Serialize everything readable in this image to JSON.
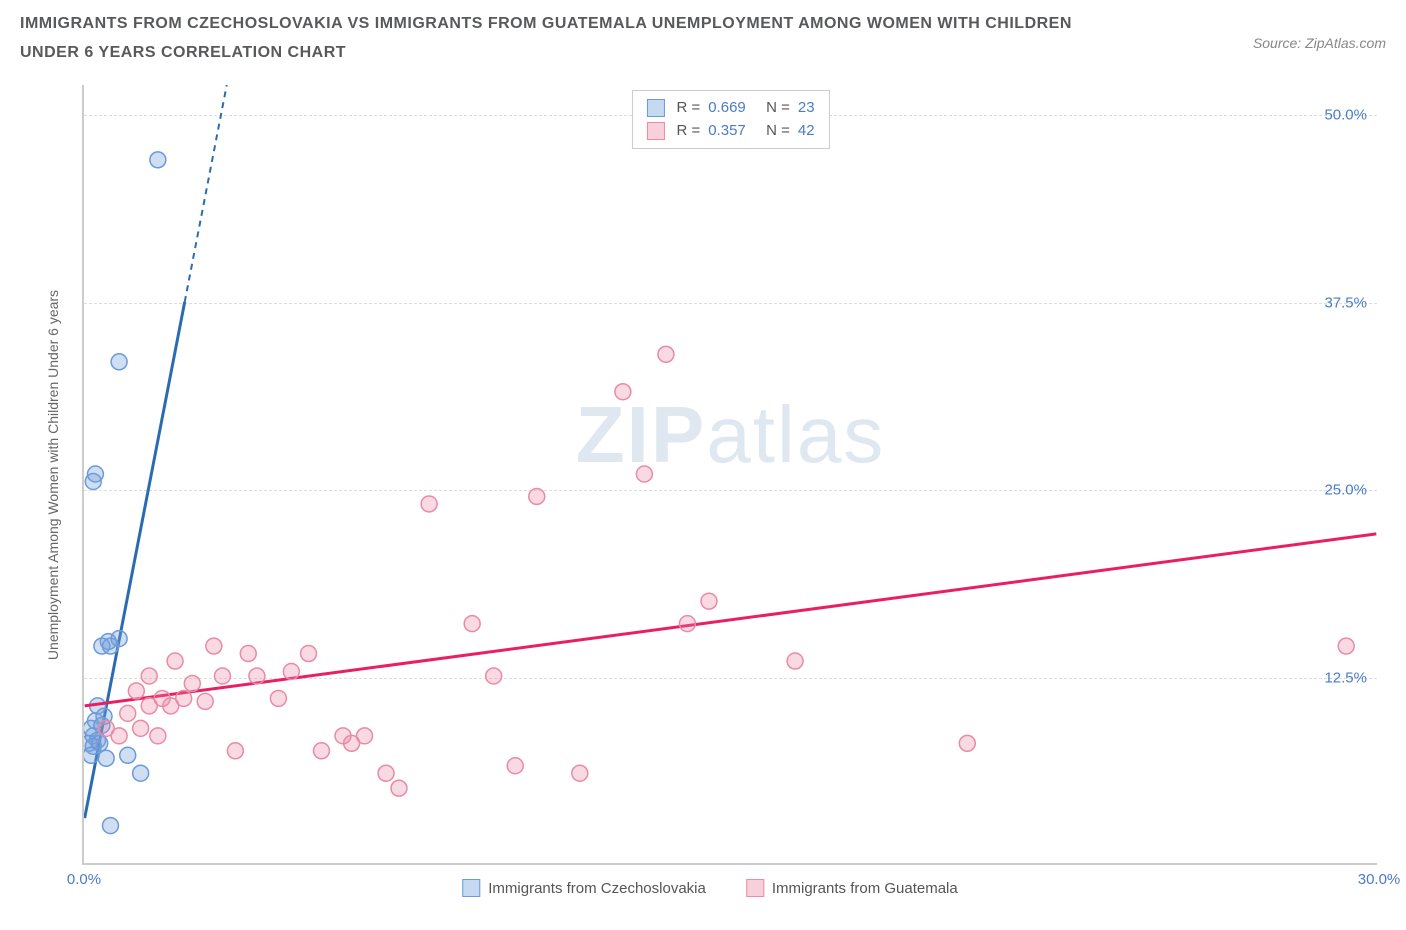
{
  "title": "IMMIGRANTS FROM CZECHOSLOVAKIA VS IMMIGRANTS FROM GUATEMALA UNEMPLOYMENT AMONG WOMEN WITH CHILDREN UNDER 6 YEARS CORRELATION CHART",
  "source": "Source: ZipAtlas.com",
  "y_axis_label": "Unemployment Among Women with Children Under 6 years",
  "watermark_bold": "ZIP",
  "watermark_light": "atlas",
  "chart": {
    "type": "scatter",
    "xlim": [
      0,
      30
    ],
    "ylim": [
      0,
      52
    ],
    "x_ticks": [
      {
        "v": 0,
        "l": "0.0%"
      },
      {
        "v": 30,
        "l": "30.0%"
      }
    ],
    "y_ticks": [
      {
        "v": 12.5,
        "l": "12.5%"
      },
      {
        "v": 25,
        "l": "25.0%"
      },
      {
        "v": 37.5,
        "l": "37.5%"
      },
      {
        "v": 50,
        "l": "50.0%"
      }
    ],
    "grid_color": "#dddddd",
    "background_color": "#ffffff",
    "label_color": "#4a7bc8",
    "series": [
      {
        "name": "Immigrants from Czechoslovakia",
        "key": "czech",
        "color_fill": "rgba(120,160,220,0.35)",
        "color_stroke": "#6a9bd8",
        "line_color": "#2b6cb0",
        "swatch_fill": "#c5d9f1",
        "swatch_border": "#6a9bd8",
        "R": "0.669",
        "N": "23",
        "trend": {
          "x1": 0,
          "y1": 3.0,
          "x2": 3.3,
          "y2": 52,
          "dash_from_y": 37.5
        },
        "points": [
          [
            0.1,
            8.0
          ],
          [
            0.2,
            8.5
          ],
          [
            0.15,
            9.0
          ],
          [
            0.3,
            8.2
          ],
          [
            0.25,
            9.5
          ],
          [
            0.2,
            7.8
          ],
          [
            0.35,
            8.0
          ],
          [
            0.15,
            7.2
          ],
          [
            0.4,
            9.2
          ],
          [
            0.3,
            10.5
          ],
          [
            0.5,
            7.0
          ],
          [
            0.45,
            9.8
          ],
          [
            0.4,
            14.5
          ],
          [
            0.55,
            14.8
          ],
          [
            0.6,
            14.5
          ],
          [
            0.8,
            15.0
          ],
          [
            1.0,
            7.2
          ],
          [
            1.3,
            6.0
          ],
          [
            0.2,
            25.5
          ],
          [
            0.25,
            26.0
          ],
          [
            0.8,
            33.5
          ],
          [
            1.7,
            47.0
          ],
          [
            0.6,
            2.5
          ]
        ]
      },
      {
        "name": "Immigrants from Guatemala",
        "key": "guatemala",
        "color_fill": "rgba(235,130,160,0.3)",
        "color_stroke": "#e88aa8",
        "line_color": "#e91e63",
        "swatch_fill": "#f8d0dc",
        "swatch_border": "#e88aa8",
        "R": "0.357",
        "N": "42",
        "trend": {
          "x1": 0,
          "y1": 10.5,
          "x2": 30,
          "y2": 22.0
        },
        "points": [
          [
            0.5,
            9.0
          ],
          [
            0.8,
            8.5
          ],
          [
            1.0,
            10.0
          ],
          [
            1.2,
            11.5
          ],
          [
            1.3,
            9.0
          ],
          [
            1.5,
            10.5
          ],
          [
            1.5,
            12.5
          ],
          [
            1.7,
            8.5
          ],
          [
            1.8,
            11.0
          ],
          [
            2.0,
            10.5
          ],
          [
            2.1,
            13.5
          ],
          [
            2.3,
            11.0
          ],
          [
            2.5,
            12.0
          ],
          [
            2.8,
            10.8
          ],
          [
            3.0,
            14.5
          ],
          [
            3.2,
            12.5
          ],
          [
            3.5,
            7.5
          ],
          [
            3.8,
            14.0
          ],
          [
            4.0,
            12.5
          ],
          [
            4.5,
            11.0
          ],
          [
            4.8,
            12.8
          ],
          [
            5.2,
            14.0
          ],
          [
            5.5,
            7.5
          ],
          [
            6.0,
            8.5
          ],
          [
            6.2,
            8.0
          ],
          [
            6.5,
            8.5
          ],
          [
            7.0,
            6.0
          ],
          [
            7.3,
            5.0
          ],
          [
            9.0,
            16.0
          ],
          [
            8.0,
            24.0
          ],
          [
            9.5,
            12.5
          ],
          [
            10.0,
            6.5
          ],
          [
            10.5,
            24.5
          ],
          [
            11.5,
            6.0
          ],
          [
            12.5,
            31.5
          ],
          [
            13.0,
            26.0
          ],
          [
            13.5,
            34.0
          ],
          [
            14.0,
            16.0
          ],
          [
            14.5,
            17.5
          ],
          [
            16.5,
            13.5
          ],
          [
            20.5,
            8.0
          ],
          [
            29.3,
            14.5
          ]
        ]
      }
    ]
  },
  "legend_bottom": [
    {
      "key": "czech",
      "label": "Immigrants from Czechoslovakia"
    },
    {
      "key": "guatemala",
      "label": "Immigrants from Guatemala"
    }
  ]
}
